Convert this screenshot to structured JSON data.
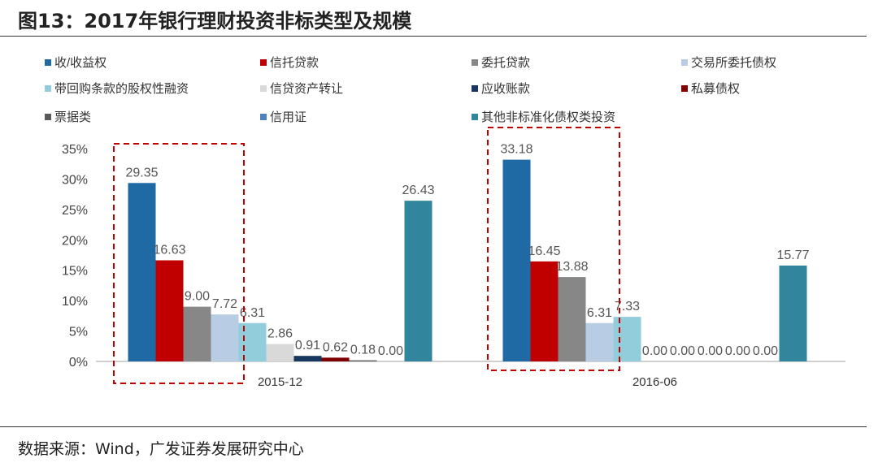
{
  "title": "图13：2017年银行理财投资非标类型及规模",
  "source": "数据来源：Wind，广发证券发展研究中心",
  "chart_data": {
    "type": "bar",
    "title": "",
    "categories": [
      "2015-12",
      "2016-06"
    ],
    "ylim": [
      0,
      35
    ],
    "yticks": [
      "0%",
      "5%",
      "10%",
      "15%",
      "20%",
      "25%",
      "30%",
      "35%"
    ],
    "grid": false,
    "legend_position": "top",
    "series": [
      {
        "name": "收/收益权",
        "color": "#1f6aa5",
        "values": [
          29.35,
          33.18
        ]
      },
      {
        "name": "信托贷款",
        "color": "#c00000",
        "values": [
          16.63,
          16.45
        ]
      },
      {
        "name": "委托贷款",
        "color": "#878787",
        "values": [
          9.0,
          13.88
        ]
      },
      {
        "name": "交易所委托债权",
        "color": "#b8cce4",
        "values": [
          7.72,
          6.31
        ]
      },
      {
        "name": "带回购条款的股权性融资",
        "color": "#92cddc",
        "values": [
          6.31,
          7.33
        ]
      },
      {
        "name": "信贷资产转让",
        "color": "#d9d9d9",
        "values": [
          2.86,
          0.0
        ]
      },
      {
        "name": "应收账款",
        "color": "#17375e",
        "values": [
          0.91,
          0.0
        ]
      },
      {
        "name": "私募债权",
        "color": "#7f0000",
        "values": [
          0.62,
          0.0
        ]
      },
      {
        "name": "票据类",
        "color": "#595959",
        "values": [
          0.18,
          0.0
        ]
      },
      {
        "name": "信用证",
        "color": "#4f81bd",
        "values": [
          0.0,
          0.0
        ]
      },
      {
        "name": "其他非标准化债权类投资",
        "color": "#31859c",
        "values": [
          26.43,
          15.77
        ]
      }
    ],
    "highlight_color": "#c00000"
  }
}
